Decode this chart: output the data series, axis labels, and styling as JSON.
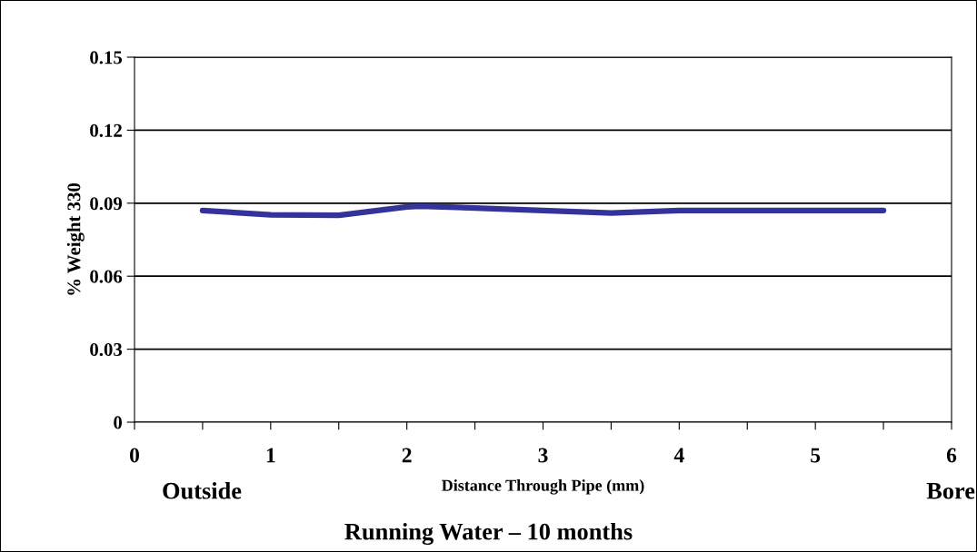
{
  "chart_data": {
    "type": "line",
    "title": "Running Water – 10 months",
    "xlabel": "Distance Through Pipe (mm)",
    "ylabel": "% Weight 330",
    "x": [
      0.5,
      1,
      1.5,
      2,
      2.1,
      2.5,
      3,
      3.5,
      4,
      4.5,
      5,
      5.5
    ],
    "series": [
      {
        "color": "#333399",
        "values": [
          0.087,
          0.0852,
          0.085,
          0.0885,
          0.0888,
          0.088,
          0.087,
          0.086,
          0.087,
          0.087,
          0.087,
          0.087
        ]
      }
    ],
    "xlim": [
      0,
      6
    ],
    "xticks": [
      0,
      {
        "value": 0.5,
        "label": null
      },
      1,
      {
        "value": 1.5,
        "label": null
      },
      2,
      {
        "value": 2.5,
        "label": null
      },
      3,
      {
        "value": 3.5,
        "label": null
      },
      4,
      {
        "value": 4.5,
        "label": null
      },
      5,
      {
        "value": 5.5,
        "label": null
      },
      6
    ],
    "ylim": [
      0,
      0.15
    ],
    "yticks": [
      0,
      0.03,
      0.06,
      0.09,
      0.12,
      0.15
    ],
    "grid": "y",
    "legend": false,
    "marker": "none",
    "line_style": "solid",
    "annotations": [
      "Outside",
      "Bore"
    ]
  }
}
